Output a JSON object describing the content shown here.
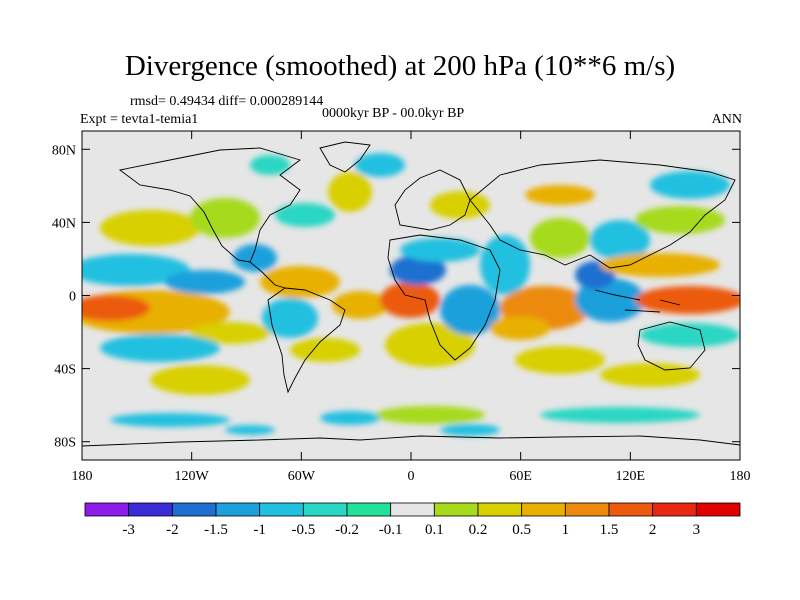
{
  "title": "Divergence (smoothed) at 200 hPa (10**6 m/s)",
  "stats_line": "rmsd= 0.49434 diff= 0.000289144",
  "experiment_line": "Expt = tevta1-temia1",
  "period_line": "0000kyr BP - 00.0kyr BP",
  "season": "ANN",
  "map": {
    "lat_ticks": [
      "80N",
      "40N",
      "0",
      "40S",
      "80S"
    ],
    "lat_values": [
      80,
      40,
      0,
      -40,
      -80
    ],
    "lon_ticks": [
      "180",
      "120W",
      "60W",
      "0",
      "60E",
      "120E",
      "180"
    ],
    "lon_values": [
      -180,
      -120,
      -60,
      0,
      60,
      120,
      180
    ],
    "lat_range": [
      -90,
      90
    ],
    "lon_range": [
      -180,
      180
    ]
  },
  "colorbar": {
    "labels": [
      "-3",
      "-2",
      "-1.5",
      "-1",
      "-0.5",
      "-0.2",
      "-0.1",
      "0.1",
      "0.2",
      "0.5",
      "1",
      "1.5",
      "2",
      "3"
    ],
    "colors": [
      "#8c1ce8",
      "#3a2cd6",
      "#1f6fd0",
      "#1da0dc",
      "#22c0e0",
      "#2ad6c4",
      "#22e29a",
      "#e6e6e6",
      "#a6da1a",
      "#d8d000",
      "#e8b000",
      "#ec8a10",
      "#ec5a10",
      "#e82810",
      "#e00000"
    ]
  }
}
